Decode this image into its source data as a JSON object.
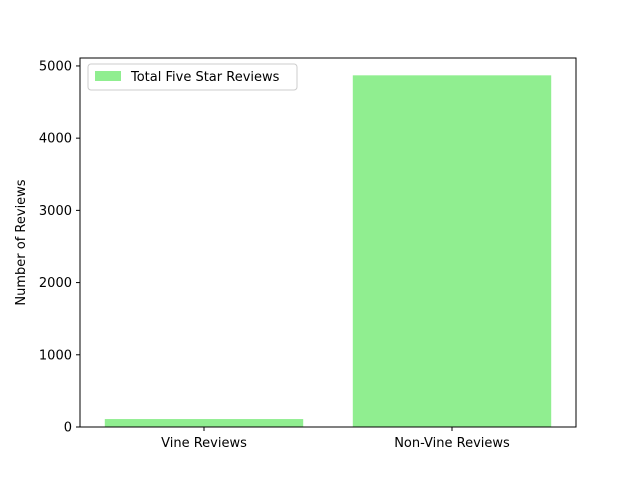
{
  "chart_data": {
    "type": "bar",
    "title": "",
    "xlabel": "",
    "ylabel": "Number of Reviews",
    "categories": [
      "Vine Reviews",
      "Non-Vine Reviews"
    ],
    "series": [
      {
        "name": "Total Five Star Reviews",
        "values": [
          110,
          4870
        ],
        "color": "#90ee90"
      }
    ],
    "ylim": [
      0,
      5110
    ],
    "yticks": [
      0,
      1000,
      2000,
      3000,
      4000,
      5000
    ],
    "grid": false,
    "legend_position": "top-left"
  }
}
